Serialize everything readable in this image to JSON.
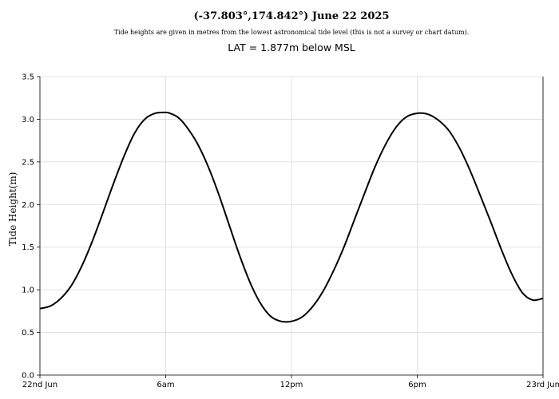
{
  "chart_data": {
    "type": "line",
    "title": "(-37.803°,174.842°) June 22 2025",
    "subtitle": "Tide heights are given in metres from the lowest astronomical tide level (this is not a survey or chart datum).",
    "annotation": "LAT = 1.877m below MSL",
    "xlabel": "",
    "ylabel": "Tide Height(m)",
    "x_unit": "hours since 22nd Jun 00:00",
    "xlim": [
      0,
      24
    ],
    "ylim": [
      0,
      3.5
    ],
    "x_ticks": [
      {
        "value": 0,
        "label": "22nd Jun"
      },
      {
        "value": 6,
        "label": "6am"
      },
      {
        "value": 12,
        "label": "12pm"
      },
      {
        "value": 18,
        "label": "6pm"
      },
      {
        "value": 24,
        "label": "23rd Jun"
      }
    ],
    "y_ticks": [
      {
        "value": 0.0,
        "label": "0.0"
      },
      {
        "value": 0.5,
        "label": "0.5"
      },
      {
        "value": 1.0,
        "label": "1.0"
      },
      {
        "value": 1.5,
        "label": "1.5"
      },
      {
        "value": 2.0,
        "label": "2.0"
      },
      {
        "value": 2.5,
        "label": "2.5"
      },
      {
        "value": 3.0,
        "label": "3.0"
      },
      {
        "value": 3.5,
        "label": "3.5"
      }
    ],
    "grid": true,
    "series": [
      {
        "color": "#000000",
        "x": [
          0.0,
          0.5,
          1.0,
          1.5,
          2.0,
          2.5,
          3.0,
          3.5,
          4.0,
          4.5,
          5.0,
          5.5,
          6.0,
          6.2,
          6.6,
          7.0,
          7.5,
          8.0,
          8.5,
          9.0,
          9.5,
          10.0,
          10.5,
          11.0,
          11.5,
          12.0,
          12.5,
          13.0,
          13.5,
          14.0,
          14.5,
          15.0,
          15.5,
          16.0,
          16.5,
          17.0,
          17.5,
          18.0,
          18.5,
          19.0,
          19.5,
          20.0,
          20.5,
          21.0,
          21.5,
          22.0,
          22.5,
          23.0,
          23.5,
          24.0
        ],
        "values": [
          0.78,
          0.81,
          0.9,
          1.05,
          1.28,
          1.57,
          1.9,
          2.24,
          2.56,
          2.83,
          3.0,
          3.07,
          3.08,
          3.07,
          3.02,
          2.91,
          2.72,
          2.46,
          2.14,
          1.78,
          1.42,
          1.1,
          0.85,
          0.69,
          0.63,
          0.63,
          0.68,
          0.8,
          0.98,
          1.22,
          1.5,
          1.82,
          2.14,
          2.45,
          2.71,
          2.91,
          3.03,
          3.07,
          3.06,
          2.99,
          2.87,
          2.67,
          2.41,
          2.11,
          1.8,
          1.48,
          1.19,
          0.97,
          0.88,
          0.9
        ]
      }
    ]
  }
}
